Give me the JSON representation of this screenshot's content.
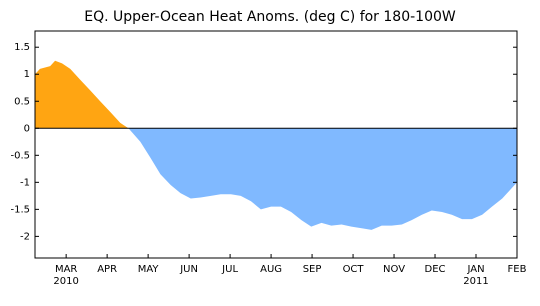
{
  "chart_data": {
    "type": "area",
    "title": "EQ. Upper-Ocean Heat Anoms. (deg C) for 180-100W",
    "x": [
      -0.76,
      -0.64,
      -0.39,
      -0.27,
      -0.1,
      0.1,
      0.34,
      0.59,
      0.83,
      1.08,
      1.32,
      1.52,
      1.81,
      2.06,
      2.3,
      2.55,
      2.79,
      3.04,
      3.28,
      3.53,
      3.77,
      4.02,
      4.26,
      4.51,
      4.75,
      5.0,
      5.24,
      5.49,
      5.74,
      5.98,
      6.23,
      6.47,
      6.72,
      6.96,
      7.21,
      7.45,
      7.7,
      7.94,
      8.19,
      8.43,
      8.68,
      8.92,
      9.17,
      9.41,
      9.66,
      9.9,
      10.15,
      10.39,
      10.64,
      10.88,
      11.0
    ],
    "values": [
      1.0,
      1.1,
      1.15,
      1.25,
      1.2,
      1.1,
      0.9,
      0.7,
      0.5,
      0.3,
      0.1,
      0,
      -0.25,
      -0.55,
      -0.85,
      -1.05,
      -1.2,
      -1.3,
      -1.28,
      -1.25,
      -1.22,
      -1.22,
      -1.25,
      -1.35,
      -1.5,
      -1.45,
      -1.45,
      -1.55,
      -1.7,
      -1.82,
      -1.75,
      -1.8,
      -1.78,
      -1.82,
      -1.85,
      -1.88,
      -1.8,
      -1.8,
      -1.78,
      -1.7,
      -1.6,
      -1.52,
      -1.55,
      -1.6,
      -1.68,
      -1.68,
      -1.6,
      -1.45,
      -1.3,
      -1.1,
      -1.0
    ],
    "positive_color": "#ffa512",
    "negative_color": "#80b9ff",
    "xlim": [
      -0.76,
      11.0
    ],
    "xticks": [
      {
        "value": 0,
        "label": "MAR"
      },
      {
        "value": 1,
        "label": "APR"
      },
      {
        "value": 2,
        "label": "MAY"
      },
      {
        "value": 3,
        "label": "JUN"
      },
      {
        "value": 4,
        "label": "JUL"
      },
      {
        "value": 5,
        "label": "AUG"
      },
      {
        "value": 6,
        "label": "SEP"
      },
      {
        "value": 7,
        "label": "OCT"
      },
      {
        "value": 8,
        "label": "NOV"
      },
      {
        "value": 9,
        "label": "DEC"
      },
      {
        "value": 10,
        "label": "JAN"
      },
      {
        "value": 11,
        "label": "FEB"
      }
    ],
    "year_labels": [
      {
        "value": 0,
        "label": "2010"
      },
      {
        "value": 10,
        "label": "2011"
      }
    ],
    "ylim": [
      -2.4,
      1.8
    ],
    "yticks": [
      1.5,
      1,
      0.5,
      0,
      -0.5,
      -1,
      -1.5,
      -2
    ]
  }
}
